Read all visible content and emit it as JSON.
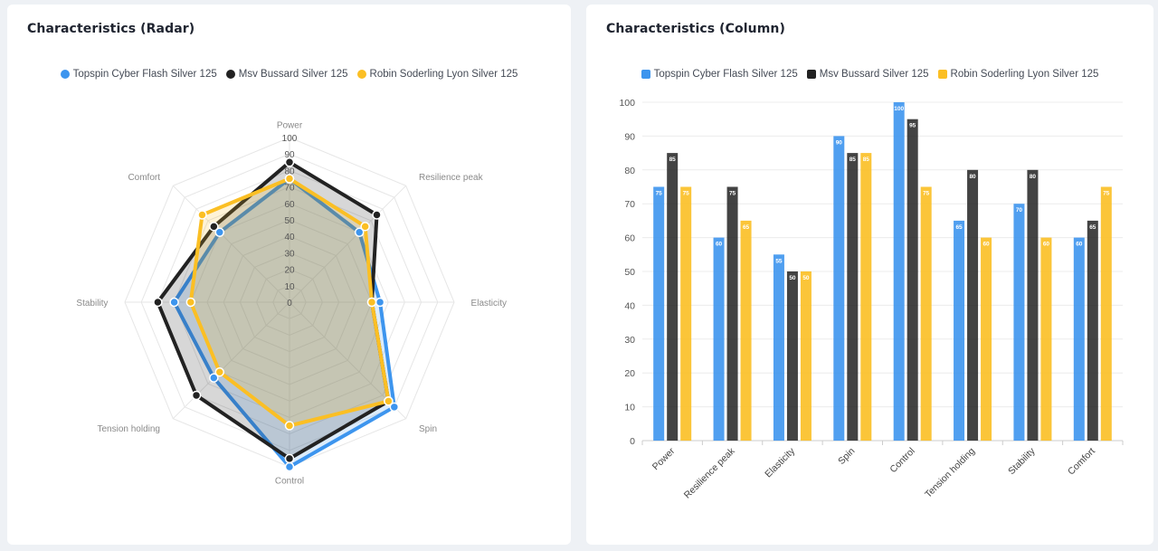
{
  "colors": [
    "#3d95ee",
    "#222222",
    "#fbbf24"
  ],
  "radar_card": {
    "title": "Characteristics (Radar)"
  },
  "column_card": {
    "title": "Characteristics (Column)"
  },
  "chart_data": [
    {
      "type": "radar",
      "title": "Characteristics (Radar)",
      "axes": [
        "Power",
        "Resilience peak",
        "Elasticity",
        "Spin",
        "Control",
        "Tension holding",
        "Stability",
        "Comfort"
      ],
      "scale_ticks": [
        "100",
        "90",
        "80",
        "70",
        "60",
        "50",
        "40",
        "30",
        "20",
        "10",
        "0"
      ],
      "range": [
        0,
        100
      ],
      "legend_position": "top",
      "series": [
        {
          "name": "Topspin Cyber Flash Silver 125",
          "values": [
            75,
            60,
            55,
            90,
            100,
            65,
            70,
            60
          ]
        },
        {
          "name": "Msv Bussard Silver 125",
          "values": [
            85,
            75,
            50,
            85,
            95,
            80,
            80,
            65
          ]
        },
        {
          "name": "Robin Soderling Lyon Silver 125",
          "values": [
            75,
            65,
            50,
            85,
            75,
            60,
            60,
            75
          ]
        }
      ]
    },
    {
      "type": "bar",
      "title": "Characteristics (Column)",
      "categories": [
        "Power",
        "Resilience peak",
        "Elasticity",
        "Spin",
        "Control",
        "Tension holding",
        "Stability",
        "Comfort"
      ],
      "y_ticks": [
        "0",
        "10",
        "20",
        "30",
        "40",
        "50",
        "60",
        "70",
        "80",
        "90",
        "100"
      ],
      "ylim": [
        0,
        100
      ],
      "grid": true,
      "legend_position": "top",
      "series": [
        {
          "name": "Topspin Cyber Flash Silver 125",
          "values": [
            75,
            60,
            55,
            90,
            100,
            65,
            70,
            60
          ]
        },
        {
          "name": "Msv Bussard Silver 125",
          "values": [
            85,
            75,
            50,
            85,
            95,
            80,
            80,
            65
          ]
        },
        {
          "name": "Robin Soderling Lyon Silver 125",
          "values": [
            75,
            65,
            50,
            85,
            75,
            60,
            60,
            75
          ]
        }
      ]
    }
  ]
}
